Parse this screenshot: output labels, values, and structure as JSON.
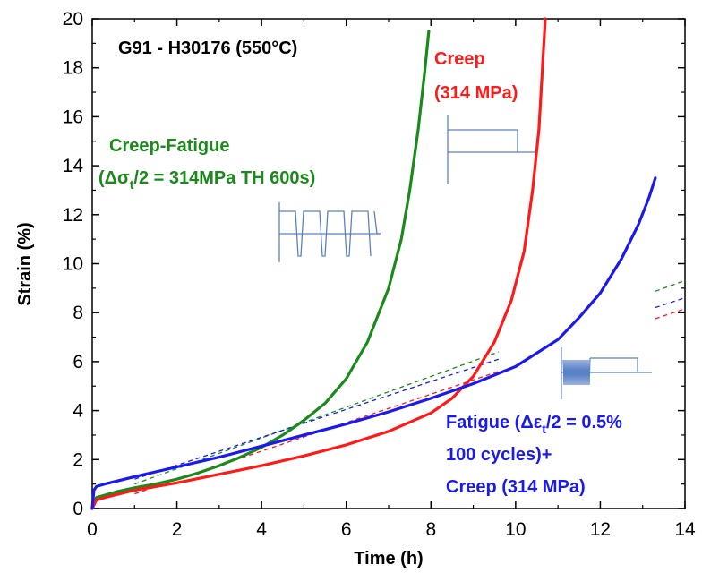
{
  "chart_data": {
    "type": "line",
    "title": "G91 - H30176 (550°C)",
    "xlabel": "Time (h)",
    "ylabel": "Strain (%)",
    "xlim": [
      0,
      14
    ],
    "ylim": [
      0,
      20
    ],
    "xticks": [
      "0",
      "2",
      "4",
      "6",
      "8",
      "10",
      "12",
      "14"
    ],
    "yticks": [
      "0",
      "2",
      "4",
      "6",
      "8",
      "10",
      "12",
      "14",
      "16",
      "18",
      "20"
    ],
    "grid": false,
    "colors": {
      "creep_fatigue": "#1a8a1a",
      "creep": "#ff1a1a",
      "fatigue_creep": "#1a1aee",
      "waveform": "#5a82c8"
    },
    "annotations": {
      "creep_fatigue": {
        "line1": "Creep-Fatigue",
        "line2_pre": "(Δσ",
        "line2_sub": "t",
        "line2_post": "/2 = 314MPa TH 600s)"
      },
      "creep": {
        "line1": "Creep",
        "line2": "(314 MPa)"
      },
      "fatigue_creep": {
        "line1_pre": "Fatigue (Δε",
        "line1_sub": "t",
        "line1_post": "/2 = 0.5%",
        "line2": "100 cycles)+",
        "line3": "Creep (314 MPa)"
      }
    },
    "series": [
      {
        "key": "creep_fatigue",
        "x": [
          0,
          0.1,
          0.3,
          0.6,
          1,
          1.5,
          2,
          2.5,
          3,
          3.5,
          4,
          4.5,
          5,
          5.5,
          6,
          6.5,
          7,
          7.3,
          7.5,
          7.7,
          7.85,
          7.95
        ],
        "y": [
          0,
          0.45,
          0.55,
          0.7,
          0.85,
          1.0,
          1.2,
          1.45,
          1.75,
          2.1,
          2.5,
          3.0,
          3.6,
          4.3,
          5.3,
          6.8,
          9.0,
          11.0,
          13.0,
          15.5,
          17.8,
          19.5
        ]
      },
      {
        "key": "creep",
        "x": [
          0,
          0.1,
          0.3,
          1,
          2,
          3,
          4,
          5,
          6,
          7,
          8,
          8.5,
          9,
          9.5,
          9.9,
          10.2,
          10.4,
          10.55,
          10.65,
          10.7
        ],
        "y": [
          0,
          0.35,
          0.45,
          0.75,
          1.05,
          1.4,
          1.75,
          2.15,
          2.6,
          3.15,
          3.9,
          4.5,
          5.4,
          6.8,
          8.5,
          10.5,
          13.0,
          15.5,
          18.5,
          20.0
        ]
      },
      {
        "key": "fatigue_creep",
        "x": [
          0,
          0.04,
          0.1,
          0.3,
          1,
          2,
          3,
          4,
          5,
          6,
          7,
          8,
          9,
          10,
          11,
          11.5,
          12,
          12.5,
          12.9,
          13.15,
          13.3
        ],
        "y": [
          0,
          0.75,
          0.9,
          1.0,
          1.3,
          1.7,
          2.1,
          2.55,
          3.0,
          3.45,
          3.95,
          4.5,
          5.1,
          5.8,
          6.9,
          7.8,
          8.8,
          10.2,
          11.6,
          12.7,
          13.5
        ]
      }
    ],
    "trend_lines": [
      {
        "key": "creep_fatigue",
        "x": [
          1,
          9.6
        ],
        "y": [
          1.0,
          6.4
        ]
      },
      {
        "key": "creep",
        "x": [
          1,
          9.6
        ],
        "y": [
          0.6,
          5.6
        ]
      },
      {
        "key": "fatigue_creep",
        "x": [
          1,
          9.6
        ],
        "y": [
          1.2,
          6.1
        ]
      }
    ]
  }
}
